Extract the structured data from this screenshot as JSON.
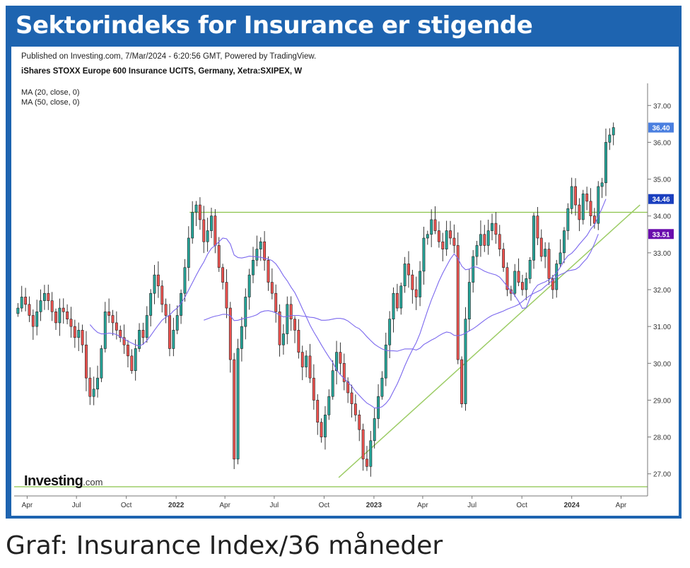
{
  "header": {
    "title": "Sektorindeks for Insurance er stigende",
    "published": "Published on Investing.com, 7/Mar/2024 - 6:20:56 GMT, Powered by TradingView.",
    "instrument": "iShares STOXX Europe 600 Insurance UCITS, Germany, Xetra:SXIPEX, W"
  },
  "indicators": [
    "MA (20, close, 0)",
    "MA (50, close, 0)"
  ],
  "logo": {
    "word": "Investing",
    "suffix": ".com"
  },
  "caption": "Graf: Insurance Index/36 måneder",
  "colors": {
    "frame": "#1e64b0",
    "up": "#26a69a",
    "down": "#ef5350",
    "ma": "#7b68ee",
    "trend": "#8bc34a",
    "last": "#4a7fe0",
    "ma20_badge": "#1a3fbf",
    "ma50_badge": "#6a0dad"
  },
  "chart_data": {
    "type": "candlestick",
    "title": "",
    "xlabel": "",
    "ylabel": "",
    "ylim": [
      26.4,
      37.6
    ],
    "y_ticks": [
      "27.00",
      "28.00",
      "29.00",
      "30.00",
      "31.00",
      "32.00",
      "33.00",
      "34.00",
      "35.00",
      "36.00",
      "37.00"
    ],
    "x_tick_labels": [
      {
        "label": "Apr",
        "date": "2021-04-01"
      },
      {
        "label": "Jul",
        "date": "2021-07-01"
      },
      {
        "label": "Oct",
        "date": "2021-10-01"
      },
      {
        "label": "2022",
        "date": "2022-01-01"
      },
      {
        "label": "Apr",
        "date": "2022-04-01"
      },
      {
        "label": "Jul",
        "date": "2022-07-01"
      },
      {
        "label": "Oct",
        "date": "2022-10-01"
      },
      {
        "label": "2023",
        "date": "2023-01-01"
      },
      {
        "label": "Apr",
        "date": "2023-04-01"
      },
      {
        "label": "Jul",
        "date": "2023-07-01"
      },
      {
        "label": "Oct",
        "date": "2023-10-01"
      },
      {
        "label": "2024",
        "date": "2024-01-01"
      },
      {
        "label": "Apr",
        "date": "2024-04-01"
      }
    ],
    "x_range": [
      "2021-03-08",
      "2024-05-20"
    ],
    "price_labels": [
      {
        "value": 36.4,
        "label": "36.40",
        "series": "last"
      },
      {
        "value": 34.46,
        "label": "34.46",
        "series": "ma20"
      },
      {
        "value": 33.51,
        "label": "33.51",
        "series": "ma50"
      }
    ],
    "horizontal_lines": [
      34.1,
      26.65
    ],
    "trend_line": [
      {
        "date": "2022-10-28",
        "value": 26.9
      },
      {
        "date": "2024-05-06",
        "value": 34.3
      }
    ],
    "closes": [
      31.5,
      31.8,
      31.6,
      31.3,
      31.0,
      31.4,
      31.7,
      31.9,
      31.7,
      31.4,
      31.1,
      31.5,
      31.4,
      31.2,
      31.0,
      30.7,
      30.9,
      30.5,
      29.6,
      29.1,
      29.3,
      29.6,
      30.4,
      31.4,
      31.3,
      31.1,
      30.9,
      30.7,
      30.5,
      30.2,
      29.8,
      30.4,
      30.9,
      30.7,
      31.3,
      31.9,
      32.4,
      32.1,
      31.6,
      31.3,
      30.4,
      30.9,
      31.3,
      31.9,
      32.6,
      33.4,
      34.1,
      34.3,
      33.9,
      33.3,
      33.6,
      34.0,
      33.2,
      32.6,
      32.2,
      31.5,
      30.1,
      27.4,
      30.4,
      31.0,
      31.8,
      32.4,
      32.8,
      33.1,
      33.3,
      32.8,
      32.2,
      31.9,
      31.4,
      30.5,
      30.8,
      31.6,
      31.2,
      30.9,
      30.3,
      29.9,
      30.2,
      29.6,
      29.0,
      28.4,
      28.0,
      28.6,
      29.1,
      29.8,
      30.3,
      30.0,
      29.5,
      29.2,
      28.9,
      28.6,
      28.2,
      27.4,
      27.2,
      27.9,
      28.5,
      29.1,
      29.6,
      30.5,
      31.2,
      31.9,
      31.5,
      32.1,
      32.7,
      32.4,
      32.0,
      31.8,
      32.5,
      33.4,
      33.5,
      33.9,
      33.6,
      33.3,
      33.1,
      33.6,
      33.4,
      33.2,
      30.1,
      28.9,
      31.2,
      32.2,
      32.9,
      33.2,
      33.5,
      33.2,
      33.6,
      33.8,
      33.5,
      33.1,
      32.6,
      32.0,
      31.9,
      32.5,
      32.2,
      32.0,
      32.3,
      32.8,
      34.0,
      33.4,
      32.9,
      33.1,
      32.3,
      32.0,
      32.7,
      33.0,
      33.6,
      34.2,
      34.8,
      34.3,
      33.9,
      34.6,
      34.4,
      34.0,
      33.8,
      34.8,
      34.9,
      36.0,
      36.2,
      36.4
    ],
    "ma20": [
      null,
      null,
      null,
      null,
      null,
      null,
      null,
      null,
      null,
      null,
      null,
      null,
      null,
      null,
      null,
      null,
      null,
      null,
      null,
      31.05,
      30.93,
      30.84,
      30.8,
      30.8,
      30.82,
      30.81,
      30.78,
      30.72,
      30.66,
      30.6,
      30.55,
      30.5,
      30.47,
      30.52,
      30.62,
      30.75,
      30.9,
      31.04,
      31.17,
      31.25,
      31.31,
      31.42,
      31.5,
      31.63,
      31.79,
      31.99,
      32.19,
      32.39,
      32.58,
      32.75,
      32.96,
      33.12,
      33.2,
      33.3,
      33.4,
      33.38,
      33.24,
      32.94,
      32.87,
      32.86,
      32.88,
      32.91,
      32.9,
      32.89,
      32.88,
      32.85,
      32.83,
      32.79,
      32.7,
      32.55,
      32.38,
      32.24,
      32.07,
      31.92,
      31.71,
      31.48,
      31.27,
      31.04,
      30.85,
      30.68,
      30.5,
      30.33,
      30.17,
      30.02,
      29.83,
      29.69,
      29.59,
      29.49,
      29.38,
      29.24,
      29.13,
      29.02,
      28.92,
      28.86,
      28.79,
      28.79,
      28.82,
      28.91,
      29.04,
      29.24,
      29.44,
      29.68,
      29.93,
      30.16,
      30.37,
      30.56,
      30.81,
      31.12,
      31.43,
      31.72,
      31.97,
      32.23,
      32.45,
      32.64,
      32.83,
      32.97,
      32.85,
      32.64,
      32.54,
      32.56,
      32.62,
      32.61,
      32.56,
      32.5,
      32.46,
      32.43,
      32.4,
      32.34,
      32.22,
      32.09,
      31.96,
      31.84,
      31.68,
      31.49,
      31.51,
      31.77,
      31.99,
      32.12,
      32.17,
      32.21,
      32.27,
      32.35,
      32.46,
      32.61,
      32.79,
      32.92,
      32.99,
      33.1,
      33.23,
      33.35,
      33.47,
      33.64,
      33.76,
      33.99,
      34.21,
      34.46
    ],
    "ma50": [
      null,
      null,
      null,
      null,
      null,
      null,
      null,
      null,
      null,
      null,
      null,
      null,
      null,
      null,
      null,
      null,
      null,
      null,
      null,
      null,
      null,
      null,
      null,
      null,
      null,
      null,
      null,
      null,
      null,
      null,
      null,
      null,
      null,
      null,
      null,
      null,
      null,
      null,
      null,
      null,
      null,
      null,
      null,
      null,
      null,
      null,
      null,
      null,
      null,
      31.17,
      31.21,
      31.25,
      31.28,
      31.3,
      31.33,
      31.33,
      31.29,
      31.16,
      31.17,
      31.2,
      31.23,
      31.25,
      31.28,
      31.32,
      31.39,
      31.42,
      31.43,
      31.41,
      31.37,
      31.31,
      31.26,
      31.27,
      31.3,
      31.3,
      31.3,
      31.28,
      31.27,
      31.25,
      31.24,
      31.21,
      31.17,
      31.17,
      31.18,
      31.2,
      31.22,
      31.22,
      31.2,
      31.15,
      31.07,
      30.99,
      30.94,
      30.84,
      30.72,
      30.62,
      30.52,
      30.45,
      30.39,
      30.35,
      30.34,
      30.34,
      30.33,
      30.36,
      30.39,
      30.39,
      30.39,
      30.36,
      30.41,
      30.51,
      30.57,
      30.63,
      30.68,
      30.75,
      30.81,
      30.85,
      30.83,
      30.76,
      30.75,
      30.77,
      30.82,
      30.88,
      30.94,
      31.01,
      31.09,
      31.17,
      31.24,
      31.3,
      31.34,
      31.38,
      31.42,
      31.47,
      31.51,
      31.55,
      31.6,
      31.68,
      31.77,
      31.84,
      31.9,
      31.95,
      32.0,
      32.09,
      32.17,
      32.26,
      32.35,
      32.41,
      32.45,
      32.51,
      32.53,
      32.55,
      32.62,
      32.74,
      32.85,
      33.02,
      33.25,
      33.51
    ]
  }
}
